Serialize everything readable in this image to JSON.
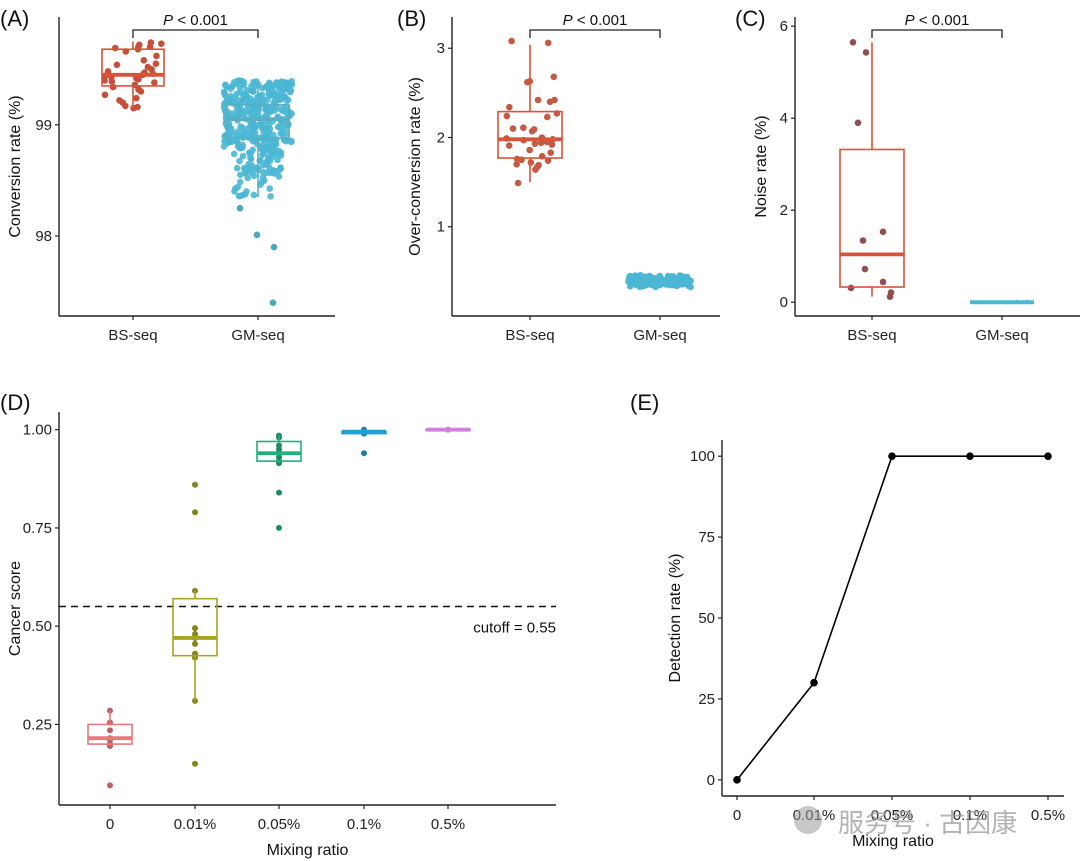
{
  "chart_data": [
    {
      "id": "A",
      "type": "box",
      "panel_label": "(A)",
      "title": "",
      "xlabel": "",
      "ylabel": "Conversion rate (%)",
      "categories": [
        "BS-seq",
        "GM-seq"
      ],
      "ylim": [
        97.28,
        99.97
      ],
      "yticks": [
        98,
        99
      ],
      "ytick_labels": [
        "98",
        "99"
      ],
      "grid": false,
      "colors": {
        "BS-seq": "#d6543a",
        "GM-seq": "#4bb7d4"
      },
      "boxes": [
        {
          "category": "BS-seq",
          "lower_whisker": 99.15,
          "q1": 99.35,
          "median": 99.45,
          "q3": 99.68,
          "upper_whisker": 99.75
        },
        {
          "category": "GM-seq",
          "lower_whisker": 98.35,
          "q1": 98.88,
          "median": 99.05,
          "q3": 99.18,
          "upper_whisker": 99.4
        }
      ],
      "points": {
        "BS-seq": [
          99.74,
          99.73,
          99.72,
          99.7,
          99.7,
          99.69,
          99.68,
          99.66,
          99.62,
          99.58,
          99.55,
          99.54,
          99.52,
          99.5,
          99.48,
          99.47,
          99.46,
          99.45,
          99.44,
          99.43,
          99.42,
          99.41,
          99.4,
          99.39,
          99.38,
          99.36,
          99.34,
          99.32,
          99.3,
          99.27,
          99.24,
          99.22,
          99.2,
          99.17,
          99.16,
          99.15
        ],
        "GM-seq_outliers": [
          98.25,
          98.01,
          97.9,
          97.4
        ],
        "GM-seq_n_approx": 400
      },
      "annotation": {
        "text_italic": "P",
        "text": " < 0.001",
        "between": [
          "BS-seq",
          "GM-seq"
        ]
      }
    },
    {
      "id": "B",
      "type": "box",
      "panel_label": "(B)",
      "title": "",
      "xlabel": "",
      "ylabel": "Over-conversion rate (%)",
      "categories": [
        "BS-seq",
        "GM-seq"
      ],
      "ylim": [
        0.0,
        3.35
      ],
      "yticks": [
        1,
        2,
        3
      ],
      "ytick_labels": [
        "1",
        "2",
        "3"
      ],
      "grid": false,
      "colors": {
        "BS-seq": "#d6543a",
        "GM-seq": "#4bb7d4"
      },
      "boxes": [
        {
          "category": "BS-seq",
          "lower_whisker": 1.5,
          "q1": 1.77,
          "median": 1.98,
          "q3": 2.29,
          "upper_whisker": 3.04
        },
        {
          "category": "GM-seq",
          "lower_whisker": 0.3,
          "q1": 0.35,
          "median": 0.37,
          "q3": 0.4,
          "upper_whisker": 0.46
        }
      ],
      "points": {
        "BS-seq": [
          3.06,
          3.08,
          2.68,
          2.62,
          2.63,
          2.42,
          2.42,
          2.4,
          2.34,
          2.27,
          2.24,
          2.23,
          2.11,
          2.1,
          2.09,
          2.07,
          2.0,
          1.99,
          1.98,
          1.97,
          1.96,
          1.95,
          1.94,
          1.93,
          1.92,
          1.91,
          1.86,
          1.83,
          1.79,
          1.76,
          1.75,
          1.74,
          1.72,
          1.7,
          1.69,
          1.67,
          1.64,
          1.49
        ],
        "GM-seq_range": [
          0.3,
          0.46
        ]
      },
      "annotation": {
        "text_italic": "P",
        "text": " < 0.001",
        "between": [
          "BS-seq",
          "GM-seq"
        ]
      }
    },
    {
      "id": "C",
      "type": "box",
      "panel_label": "(C)",
      "title": "",
      "xlabel": "",
      "ylabel": "Noise rate (%)",
      "categories": [
        "BS-seq",
        "GM-seq"
      ],
      "ylim": [
        -0.3,
        6.2
      ],
      "yticks": [
        0,
        2,
        4,
        6
      ],
      "ytick_labels": [
        "0",
        "2",
        "4",
        "6"
      ],
      "grid": false,
      "colors": {
        "BS-seq": "#d6543a",
        "GM-seq": "#4bb7d4"
      },
      "boxes": [
        {
          "category": "BS-seq",
          "lower_whisker": 0.12,
          "q1": 0.33,
          "median": 1.04,
          "q3": 3.32,
          "upper_whisker": 5.65
        },
        {
          "category": "GM-seq",
          "lower_whisker": 0.0,
          "q1": 0.0,
          "median": 0.0,
          "q3": 0.01,
          "upper_whisker": 0.02
        }
      ],
      "points": {
        "BS-seq": [
          5.65,
          5.43,
          3.9,
          1.53,
          1.34,
          0.72,
          0.44,
          0.31,
          0.21,
          0.12
        ],
        "GM-seq": [
          0.0,
          0.0,
          0.0,
          0.0,
          0.01,
          0.01
        ]
      },
      "annotation": {
        "text_italic": "P",
        "text": " < 0.001",
        "between": [
          "BS-seq",
          "GM-seq"
        ]
      }
    },
    {
      "id": "D",
      "type": "box",
      "panel_label": "(D)",
      "title": "",
      "xlabel": "Mixing ratio",
      "ylabel": "Cancer score",
      "categories": [
        "0",
        "0.01%",
        "0.05%",
        "0.1%",
        "0.5%"
      ],
      "ylim": [
        0.045,
        1.045
      ],
      "yticks": [
        0.25,
        0.5,
        0.75,
        1.0
      ],
      "ytick_labels": [
        "0.25",
        "0.50",
        "0.75",
        "1.00"
      ],
      "grid": false,
      "colors": {
        "0": "#e8787a",
        "0.01%": "#a7a521",
        "0.05%": "#22b07e",
        "0.1%": "#22a0d3",
        "0.5%": "#d47ee0"
      },
      "boxes": [
        {
          "category": "0",
          "lower_whisker": 0.195,
          "q1": 0.2,
          "median": 0.215,
          "q3": 0.25,
          "upper_whisker": 0.285
        },
        {
          "category": "0.01%",
          "lower_whisker": 0.31,
          "q1": 0.425,
          "median": 0.47,
          "q3": 0.57,
          "upper_whisker": 0.59
        },
        {
          "category": "0.05%",
          "lower_whisker": 0.915,
          "q1": 0.92,
          "median": 0.94,
          "q3": 0.97,
          "upper_whisker": 0.985
        },
        {
          "category": "0.1%",
          "lower_whisker": 0.99,
          "q1": 0.99,
          "median": 0.995,
          "q3": 0.995,
          "upper_whisker": 1.0
        },
        {
          "category": "0.5%",
          "lower_whisker": 1.0,
          "q1": 1.0,
          "median": 1.0,
          "q3": 1.0,
          "upper_whisker": 1.0
        }
      ],
      "points": {
        "0": [
          0.285,
          0.255,
          0.235,
          0.215,
          0.21,
          0.2,
          0.195,
          0.095
        ],
        "0.01%": [
          0.86,
          0.79,
          0.59,
          0.495,
          0.48,
          0.47,
          0.455,
          0.43,
          0.42,
          0.31,
          0.15
        ],
        "0.05%": [
          0.985,
          0.98,
          0.96,
          0.95,
          0.94,
          0.93,
          0.92,
          0.915,
          0.84,
          0.75
        ],
        "0.1%": [
          1.0,
          0.995,
          0.99,
          0.94
        ],
        "0.5%": [
          1.0,
          1.0,
          1.0
        ]
      },
      "reference_line": {
        "y": 0.55,
        "style": "dashed",
        "label": "cutoff = 0.55"
      }
    },
    {
      "id": "E",
      "type": "line",
      "panel_label": "(E)",
      "title": "",
      "xlabel": "Mixing ratio",
      "ylabel": "Detection rate (%)",
      "categories": [
        "0",
        "0.01%",
        "0.05%",
        "0.1%",
        "0.5%"
      ],
      "values": [
        0,
        30,
        100,
        100,
        100
      ],
      "ylim": [
        -5,
        105
      ],
      "yticks": [
        0,
        25,
        50,
        75,
        100
      ],
      "ytick_labels": [
        "0",
        "25",
        "50",
        "75",
        "100"
      ],
      "grid": false,
      "color": "#000000"
    }
  ],
  "watermark": {
    "text": "服务号 · 古因康"
  }
}
